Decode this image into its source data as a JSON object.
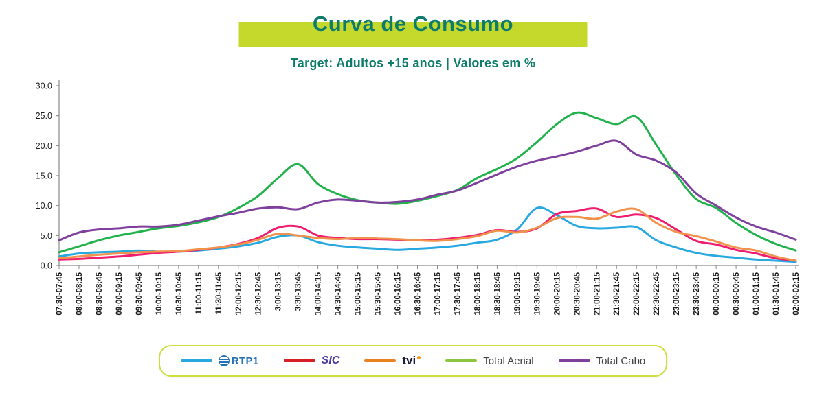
{
  "header": {
    "title": "Curva de Consumo",
    "subtitle": "Target: Adultos +15 anos | Valores em %"
  },
  "colors": {
    "highlight_bar": "#c5d92d",
    "title_text": "#0e7c6b",
    "legend_border": "#cede3a",
    "axis_line": "#8a8a8a",
    "axis_text": "#1a1a1a"
  },
  "legend": {
    "items": [
      {
        "label": "RTP1",
        "swatch": "#29a8e0",
        "logo": "rtp1"
      },
      {
        "label": "SIC",
        "swatch": "#d71f26",
        "logo": "sic"
      },
      {
        "label": "tvi",
        "swatch": "#e8821e",
        "logo": "tvi"
      },
      {
        "label": "Total Aerial",
        "swatch": "#8cc63e",
        "logo": "text"
      },
      {
        "label": "Total Cabo",
        "swatch": "#7e3f9d",
        "logo": "text"
      }
    ]
  },
  "chart_data": {
    "type": "line",
    "title": "Curva de Consumo",
    "subtitle": "Target: Adultos +15 anos | Valores em %",
    "xlabel": "",
    "ylabel": "",
    "ylim": [
      0,
      30
    ],
    "yticks": [
      0,
      5,
      10,
      15,
      20,
      25,
      30
    ],
    "grid": false,
    "legend_position": "bottom",
    "categories": [
      "07:30-07:45",
      "08:00-08:15",
      "08:30-08:45",
      "09:00-09:15",
      "09:30-09:45",
      "10:00-10:15",
      "10:30-10:45",
      "11:00-11:15",
      "11:30-11:45",
      "12:00-12:15",
      "12:30-12:45",
      "3:00-13:15",
      "3:30-13:45",
      "14:00-14:15",
      "14:30-14:45",
      "15:00-15:15",
      "15:30-15:45",
      "16:00-16:15",
      "16:30-16:45",
      "17:00-17:15",
      "17:30-17:45",
      "18:00-18:15",
      "18:30-18:45",
      "19:00-19:15",
      "19:30-19:45",
      "20:00-20:15",
      "20:30-20:45",
      "21:00-21:15",
      "21:30-21:45",
      "22:00-22:15",
      "22:30-22:45",
      "23:00-23:15",
      "23:30-23:45",
      "00:00-00:15",
      "00:30-00:45",
      "01:00-01:15",
      "01:30-01:45",
      "02:00-02:15"
    ],
    "series": [
      {
        "name": "RTP1",
        "color": "#29a8e0",
        "values": [
          1.5,
          2.0,
          2.2,
          2.3,
          2.5,
          2.3,
          2.3,
          2.5,
          2.8,
          3.2,
          3.8,
          4.8,
          5.0,
          3.9,
          3.3,
          3.0,
          2.8,
          2.6,
          2.8,
          3.0,
          3.3,
          3.8,
          4.3,
          6.0,
          9.6,
          8.4,
          6.6,
          6.2,
          6.3,
          6.4,
          4.2,
          3.0,
          2.1,
          1.6,
          1.3,
          1.0,
          0.8,
          0.6
        ]
      },
      {
        "name": "SIC",
        "color": "#ee1d6f",
        "values": [
          1.0,
          1.1,
          1.3,
          1.5,
          1.8,
          2.1,
          2.3,
          2.6,
          3.0,
          3.6,
          4.6,
          6.3,
          6.5,
          5.0,
          4.6,
          4.4,
          4.4,
          4.3,
          4.2,
          4.3,
          4.6,
          5.1,
          5.9,
          5.6,
          6.2,
          8.6,
          9.1,
          9.5,
          8.1,
          8.5,
          7.9,
          6.0,
          4.1,
          3.5,
          2.6,
          2.0,
          1.2,
          0.8
        ]
      },
      {
        "name": "TVI",
        "color": "#f0914c",
        "values": [
          1.2,
          1.5,
          1.8,
          2.0,
          2.2,
          2.3,
          2.4,
          2.7,
          3.0,
          3.5,
          4.3,
          5.3,
          5.0,
          4.6,
          4.4,
          4.6,
          4.5,
          4.4,
          4.2,
          4.1,
          4.4,
          4.9,
          5.8,
          5.5,
          6.3,
          7.9,
          8.1,
          7.8,
          9.0,
          9.4,
          7.1,
          5.6,
          4.9,
          4.0,
          3.0,
          2.5,
          1.5,
          0.8
        ]
      },
      {
        "name": "Total Aerial",
        "color": "#22b24c",
        "values": [
          2.2,
          3.2,
          4.2,
          5.0,
          5.6,
          6.2,
          6.6,
          7.2,
          8.1,
          9.6,
          11.6,
          14.6,
          16.9,
          13.6,
          11.9,
          10.9,
          10.5,
          10.3,
          10.8,
          11.6,
          12.6,
          14.6,
          16.1,
          17.9,
          20.6,
          23.6,
          25.5,
          24.6,
          23.6,
          24.8,
          20.1,
          15.1,
          11.1,
          9.6,
          7.1,
          5.1,
          3.6,
          2.5
        ]
      },
      {
        "name": "Total Cabo",
        "color": "#7e3f9d",
        "values": [
          4.2,
          5.5,
          6.0,
          6.2,
          6.5,
          6.5,
          6.8,
          7.5,
          8.2,
          8.8,
          9.5,
          9.7,
          9.4,
          10.5,
          11.0,
          10.8,
          10.5,
          10.6,
          11.0,
          11.8,
          12.5,
          13.8,
          15.2,
          16.5,
          17.5,
          18.2,
          19.0,
          20.0,
          20.8,
          18.5,
          17.5,
          15.5,
          12.0,
          10.0,
          8.0,
          6.5,
          5.5,
          4.3
        ]
      }
    ]
  }
}
